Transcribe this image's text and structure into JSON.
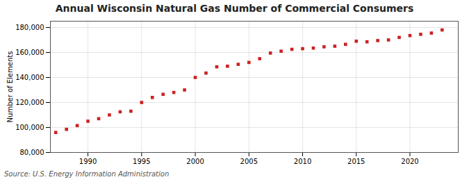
{
  "chart_data": {
    "type": "scatter",
    "title": "Annual Wisconsin Natural Gas Number of Commercial Consumers",
    "ylabel": "Number of Elements",
    "source": "Source: U.S. Energy Information Administration",
    "x": [
      1987,
      1988,
      1989,
      1990,
      1991,
      1992,
      1993,
      1994,
      1995,
      1996,
      1997,
      1998,
      1999,
      2000,
      2001,
      2002,
      2003,
      2004,
      2005,
      2006,
      2007,
      2008,
      2009,
      2010,
      2011,
      2012,
      2013,
      2014,
      2015,
      2016,
      2017,
      2018,
      2019,
      2020,
      2021,
      2022,
      2023
    ],
    "values": [
      96000,
      98500,
      101500,
      105000,
      107000,
      110000,
      112500,
      113000,
      120000,
      124000,
      126500,
      128000,
      130000,
      140000,
      143500,
      148500,
      149000,
      150500,
      152000,
      155000,
      159500,
      161000,
      162500,
      163000,
      163500,
      164500,
      165000,
      166500,
      169000,
      168500,
      169500,
      170000,
      172000,
      173500,
      174500,
      175500,
      178000
    ],
    "color": "#cc2222",
    "marker": "square",
    "xlim": [
      1986.5,
      2024.5
    ],
    "ylim": [
      80000,
      185000
    ],
    "xticks": [
      1990,
      1995,
      2000,
      2005,
      2010,
      2015,
      2020
    ],
    "yticks": [
      {
        "value": 80000,
        "label": "80,000"
      },
      {
        "value": 100000,
        "label": "100,000"
      },
      {
        "value": 120000,
        "label": "120,000"
      },
      {
        "value": 140000,
        "label": "140,000"
      },
      {
        "value": 160000,
        "label": "160,000"
      },
      {
        "value": 180000,
        "label": "180,000"
      }
    ],
    "grid": true
  }
}
